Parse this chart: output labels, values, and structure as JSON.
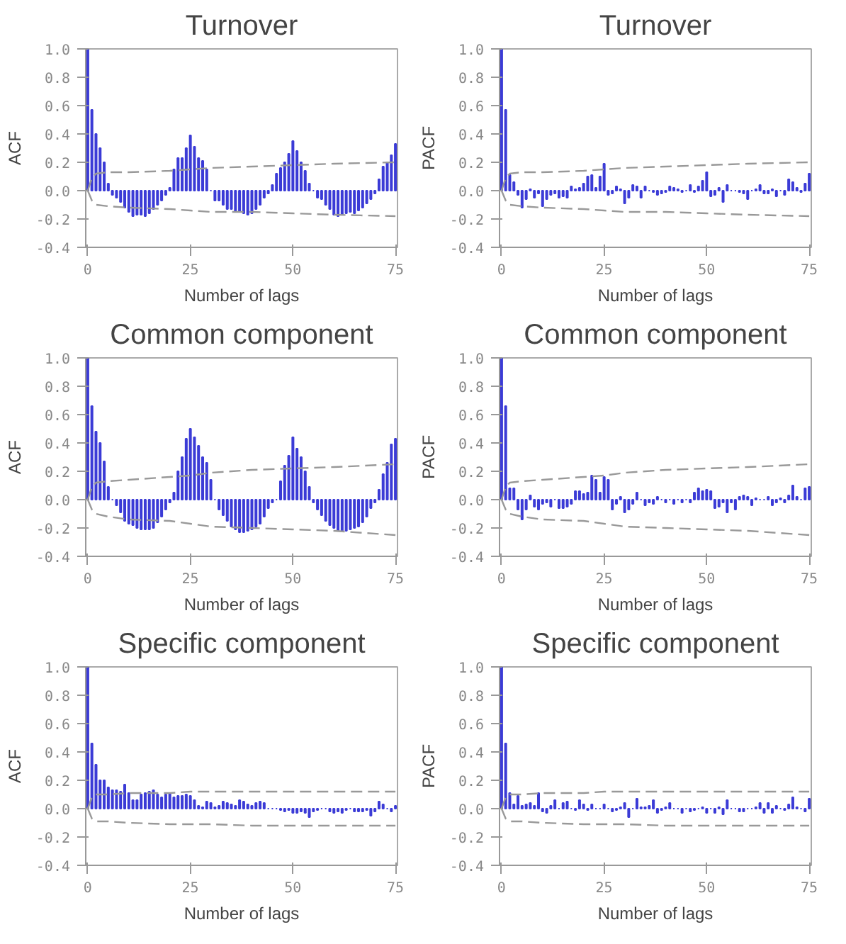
{
  "chart_data": [
    {
      "type": "bar",
      "title": "Turnover",
      "xlabel": "Number of lags",
      "ylabel": "ACF",
      "xlim": [
        -0.5,
        75.5
      ],
      "xticks": [
        0,
        25,
        50,
        75
      ],
      "ylim": [
        -0.4,
        1.0
      ],
      "yticks": [
        {
          "value": -0.4,
          "label": "-0.4"
        },
        {
          "value": -0.2,
          "label": "-0.2"
        },
        {
          "value": 0,
          "label": "0.0"
        },
        0.2,
        0.4,
        0.6,
        0.8,
        {
          "value": 1,
          "label": "1.0"
        }
      ],
      "x": [
        0,
        1,
        2,
        3,
        4,
        5,
        6,
        7,
        8,
        9,
        10,
        11,
        12,
        13,
        14,
        15,
        16,
        17,
        18,
        19,
        20,
        21,
        22,
        23,
        24,
        25,
        26,
        27,
        28,
        29,
        30,
        31,
        32,
        33,
        34,
        35,
        36,
        37,
        38,
        39,
        40,
        41,
        42,
        43,
        44,
        45,
        46,
        47,
        48,
        49,
        50,
        51,
        52,
        53,
        54,
        55,
        56,
        57,
        58,
        59,
        60,
        61,
        62,
        63,
        64,
        65,
        66,
        67,
        68,
        69,
        70,
        71,
        72,
        73,
        74,
        75
      ],
      "series": [
        {
          "type": "bar",
          "color": "#3b3bd6",
          "values": [
            1.0,
            0.57,
            0.4,
            0.3,
            0.2,
            0.05,
            -0.03,
            -0.05,
            -0.08,
            -0.12,
            -0.15,
            -0.18,
            -0.17,
            -0.17,
            -0.18,
            -0.16,
            -0.13,
            -0.1,
            -0.07,
            -0.03,
            0.02,
            0.15,
            0.23,
            0.23,
            0.3,
            0.39,
            0.31,
            0.23,
            0.21,
            0.15,
            0.0,
            -0.07,
            -0.07,
            -0.1,
            -0.13,
            -0.13,
            -0.15,
            -0.15,
            -0.16,
            -0.17,
            -0.16,
            -0.13,
            -0.1,
            -0.05,
            -0.02,
            0.04,
            0.12,
            0.16,
            0.2,
            0.26,
            0.35,
            0.28,
            0.2,
            0.14,
            0.05,
            0.0,
            -0.05,
            -0.06,
            -0.1,
            -0.13,
            -0.17,
            -0.18,
            -0.17,
            -0.16,
            -0.15,
            -0.16,
            -0.14,
            -0.12,
            -0.09,
            -0.06,
            -0.02,
            0.08,
            0.17,
            0.2,
            0.25,
            0.33
          ]
        },
        {
          "type": "line",
          "color": "#999999",
          "line_style": "dashed",
          "x": [
            0,
            1,
            2,
            5,
            10,
            20,
            25,
            30,
            40,
            50,
            60,
            75
          ],
          "values": [
            0,
            0.09,
            0.12,
            0.13,
            0.13,
            0.14,
            0.15,
            0.16,
            0.17,
            0.18,
            0.19,
            0.2
          ]
        },
        {
          "type": "line",
          "color": "#999999",
          "line_style": "dashed",
          "x": [
            0,
            1,
            2,
            5,
            10,
            20,
            25,
            30,
            40,
            50,
            60,
            75
          ],
          "values": [
            0,
            -0.07,
            -0.1,
            -0.11,
            -0.12,
            -0.13,
            -0.14,
            -0.15,
            -0.15,
            -0.16,
            -0.17,
            -0.18
          ]
        }
      ]
    },
    {
      "type": "bar",
      "title": "Turnover",
      "xlabel": "Number of lags",
      "ylabel": "PACF",
      "xlim": [
        -0.5,
        75.5
      ],
      "xticks": [
        0,
        25,
        50,
        75
      ],
      "ylim": [
        -0.4,
        1.0
      ],
      "yticks": [
        {
          "value": -0.4,
          "label": "-0.4"
        },
        {
          "value": -0.2,
          "label": "-0.2"
        },
        {
          "value": 0,
          "label": "0.0"
        },
        0.2,
        0.4,
        0.6,
        0.8,
        {
          "value": 1,
          "label": "1.0"
        }
      ],
      "x": [
        0,
        1,
        2,
        3,
        4,
        5,
        6,
        7,
        8,
        9,
        10,
        11,
        12,
        13,
        14,
        15,
        16,
        17,
        18,
        19,
        20,
        21,
        22,
        23,
        24,
        25,
        26,
        27,
        28,
        29,
        30,
        31,
        32,
        33,
        34,
        35,
        36,
        37,
        38,
        39,
        40,
        41,
        42,
        43,
        44,
        45,
        46,
        47,
        48,
        49,
        50,
        51,
        52,
        53,
        54,
        55,
        56,
        57,
        58,
        59,
        60,
        61,
        62,
        63,
        64,
        65,
        66,
        67,
        68,
        69,
        70,
        71,
        72,
        73,
        74,
        75
      ],
      "series": [
        {
          "type": "bar",
          "color": "#3b3bd6",
          "values": [
            1.0,
            0.57,
            0.11,
            0.06,
            -0.03,
            -0.12,
            -0.06,
            0.01,
            -0.05,
            -0.02,
            -0.11,
            -0.06,
            -0.03,
            -0.02,
            -0.05,
            -0.04,
            -0.05,
            0.03,
            0.01,
            0.02,
            0.05,
            0.1,
            0.11,
            0.02,
            0.1,
            0.19,
            -0.03,
            -0.02,
            0.03,
            0.01,
            -0.09,
            -0.05,
            0.04,
            0.03,
            -0.05,
            0.03,
            0.0,
            -0.01,
            -0.03,
            -0.02,
            -0.01,
            0.03,
            0.02,
            0.01,
            -0.01,
            0.0,
            0.04,
            -0.01,
            0.03,
            0.07,
            0.13,
            -0.04,
            -0.03,
            0.02,
            -0.08,
            0.04,
            0.0,
            0.0,
            -0.01,
            -0.02,
            -0.06,
            0.0,
            0.01,
            0.04,
            -0.02,
            -0.02,
            0.01,
            -0.04,
            0.0,
            -0.03,
            0.08,
            0.06,
            0.02,
            -0.01,
            0.05,
            0.12
          ]
        },
        {
          "type": "line",
          "color": "#999999",
          "line_style": "dashed",
          "x": [
            0,
            1,
            2,
            5,
            10,
            20,
            25,
            30,
            40,
            50,
            60,
            75
          ],
          "values": [
            0,
            0.09,
            0.12,
            0.13,
            0.13,
            0.14,
            0.15,
            0.16,
            0.17,
            0.18,
            0.19,
            0.2
          ]
        },
        {
          "type": "line",
          "color": "#999999",
          "line_style": "dashed",
          "x": [
            0,
            1,
            2,
            5,
            10,
            20,
            25,
            30,
            40,
            50,
            60,
            75
          ],
          "values": [
            0,
            -0.07,
            -0.1,
            -0.11,
            -0.12,
            -0.13,
            -0.14,
            -0.15,
            -0.15,
            -0.16,
            -0.17,
            -0.18
          ]
        }
      ]
    },
    {
      "type": "bar",
      "title": "Common component",
      "xlabel": "Number of lags",
      "ylabel": "ACF",
      "xlim": [
        -0.5,
        75.5
      ],
      "xticks": [
        0,
        25,
        50,
        75
      ],
      "ylim": [
        -0.4,
        1.0
      ],
      "yticks": [
        {
          "value": -0.4,
          "label": "-0.4"
        },
        {
          "value": -0.2,
          "label": "-0.2"
        },
        {
          "value": 0,
          "label": "0.0"
        },
        0.2,
        0.4,
        0.6,
        0.8,
        {
          "value": 1,
          "label": "1.0"
        }
      ],
      "x": [
        0,
        1,
        2,
        3,
        4,
        5,
        6,
        7,
        8,
        9,
        10,
        11,
        12,
        13,
        14,
        15,
        16,
        17,
        18,
        19,
        20,
        21,
        22,
        23,
        24,
        25,
        26,
        27,
        28,
        29,
        30,
        31,
        32,
        33,
        34,
        35,
        36,
        37,
        38,
        39,
        40,
        41,
        42,
        43,
        44,
        45,
        46,
        47,
        48,
        49,
        50,
        51,
        52,
        53,
        54,
        55,
        56,
        57,
        58,
        59,
        60,
        61,
        62,
        63,
        64,
        65,
        66,
        67,
        68,
        69,
        70,
        71,
        72,
        73,
        74,
        75
      ],
      "series": [
        {
          "type": "bar",
          "color": "#3b3bd6",
          "values": [
            1.0,
            0.66,
            0.48,
            0.4,
            0.27,
            0.09,
            0.0,
            -0.04,
            -0.09,
            -0.15,
            -0.17,
            -0.18,
            -0.2,
            -0.21,
            -0.21,
            -0.21,
            -0.2,
            -0.16,
            -0.12,
            -0.07,
            -0.02,
            0.05,
            0.2,
            0.3,
            0.43,
            0.5,
            0.44,
            0.38,
            0.3,
            0.26,
            0.14,
            0.0,
            -0.07,
            -0.11,
            -0.15,
            -0.19,
            -0.21,
            -0.23,
            -0.23,
            -0.22,
            -0.21,
            -0.19,
            -0.17,
            -0.12,
            -0.06,
            -0.02,
            0.0,
            0.13,
            0.24,
            0.31,
            0.44,
            0.36,
            0.3,
            0.2,
            0.09,
            -0.02,
            -0.07,
            -0.11,
            -0.15,
            -0.18,
            -0.2,
            -0.22,
            -0.22,
            -0.22,
            -0.21,
            -0.2,
            -0.19,
            -0.16,
            -0.12,
            -0.06,
            -0.02,
            0.07,
            0.18,
            0.26,
            0.39,
            0.43
          ]
        },
        {
          "type": "line",
          "color": "#999999",
          "line_style": "dashed",
          "x": [
            0,
            1,
            2,
            5,
            10,
            20,
            25,
            30,
            40,
            50,
            60,
            75
          ],
          "values": [
            0,
            0.09,
            0.12,
            0.13,
            0.14,
            0.16,
            0.17,
            0.19,
            0.21,
            0.22,
            0.23,
            0.25
          ]
        },
        {
          "type": "line",
          "color": "#999999",
          "line_style": "dashed",
          "x": [
            0,
            1,
            2,
            5,
            10,
            20,
            25,
            30,
            40,
            50,
            60,
            75
          ],
          "values": [
            0,
            -0.07,
            -0.1,
            -0.12,
            -0.14,
            -0.15,
            -0.17,
            -0.19,
            -0.2,
            -0.21,
            -0.22,
            -0.25
          ]
        }
      ]
    },
    {
      "type": "bar",
      "title": "Common component",
      "xlabel": "Number of lags",
      "ylabel": "PACF",
      "xlim": [
        -0.5,
        75.5
      ],
      "xticks": [
        0,
        25,
        50,
        75
      ],
      "ylim": [
        -0.4,
        1.0
      ],
      "yticks": [
        {
          "value": -0.4,
          "label": "-0.4"
        },
        {
          "value": -0.2,
          "label": "-0.2"
        },
        {
          "value": 0,
          "label": "0.0"
        },
        0.2,
        0.4,
        0.6,
        0.8,
        {
          "value": 1,
          "label": "1.0"
        }
      ],
      "x": [
        0,
        1,
        2,
        3,
        4,
        5,
        6,
        7,
        8,
        9,
        10,
        11,
        12,
        13,
        14,
        15,
        16,
        17,
        18,
        19,
        20,
        21,
        22,
        23,
        24,
        25,
        26,
        27,
        28,
        29,
        30,
        31,
        32,
        33,
        34,
        35,
        36,
        37,
        38,
        39,
        40,
        41,
        42,
        43,
        44,
        45,
        46,
        47,
        48,
        49,
        50,
        51,
        52,
        53,
        54,
        55,
        56,
        57,
        58,
        59,
        60,
        61,
        62,
        63,
        64,
        65,
        66,
        67,
        68,
        69,
        70,
        71,
        72,
        73,
        74,
        75
      ],
      "series": [
        {
          "type": "bar",
          "color": "#3b3bd6",
          "values": [
            1.0,
            0.66,
            0.08,
            0.08,
            -0.07,
            -0.14,
            -0.07,
            0.03,
            -0.05,
            -0.07,
            -0.03,
            -0.02,
            -0.05,
            0.0,
            -0.06,
            -0.06,
            -0.05,
            -0.03,
            0.06,
            0.06,
            0.04,
            0.05,
            0.17,
            0.14,
            0.05,
            0.16,
            0.14,
            -0.07,
            -0.03,
            0.02,
            -0.09,
            -0.07,
            -0.03,
            0.05,
            0.0,
            -0.04,
            -0.02,
            -0.03,
            0.02,
            0.0,
            -0.02,
            0.0,
            -0.03,
            0.0,
            -0.02,
            0.0,
            -0.02,
            0.05,
            0.08,
            0.06,
            0.07,
            0.06,
            -0.06,
            -0.05,
            -0.02,
            -0.09,
            -0.02,
            -0.07,
            0.02,
            0.03,
            0.02,
            -0.04,
            0.01,
            0.0,
            0.0,
            0.02,
            -0.04,
            -0.02,
            0.01,
            -0.02,
            0.03,
            0.1,
            0.02,
            0.0,
            0.08,
            0.09
          ]
        },
        {
          "type": "line",
          "color": "#999999",
          "line_style": "dashed",
          "x": [
            0,
            1,
            2,
            5,
            10,
            20,
            25,
            30,
            40,
            50,
            60,
            75
          ],
          "values": [
            0,
            0.09,
            0.12,
            0.13,
            0.14,
            0.16,
            0.17,
            0.19,
            0.21,
            0.22,
            0.23,
            0.25
          ]
        },
        {
          "type": "line",
          "color": "#999999",
          "line_style": "dashed",
          "x": [
            0,
            1,
            2,
            5,
            10,
            20,
            25,
            30,
            40,
            50,
            60,
            75
          ],
          "values": [
            0,
            -0.07,
            -0.1,
            -0.12,
            -0.14,
            -0.15,
            -0.17,
            -0.19,
            -0.2,
            -0.21,
            -0.22,
            -0.25
          ]
        }
      ]
    },
    {
      "type": "bar",
      "title": "Specific component",
      "xlabel": "Number of lags",
      "ylabel": "ACF",
      "xlim": [
        -0.5,
        75.5
      ],
      "xticks": [
        0,
        25,
        50,
        75
      ],
      "ylim": [
        -0.4,
        1.0
      ],
      "yticks": [
        {
          "value": -0.4,
          "label": "-0.4"
        },
        {
          "value": -0.2,
          "label": "-0.2"
        },
        {
          "value": 0,
          "label": "0.0"
        },
        0.2,
        0.4,
        0.6,
        0.8,
        {
          "value": 1,
          "label": "1.0"
        }
      ],
      "x": [
        0,
        1,
        2,
        3,
        4,
        5,
        6,
        7,
        8,
        9,
        10,
        11,
        12,
        13,
        14,
        15,
        16,
        17,
        18,
        19,
        20,
        21,
        22,
        23,
        24,
        25,
        26,
        27,
        28,
        29,
        30,
        31,
        32,
        33,
        34,
        35,
        36,
        37,
        38,
        39,
        40,
        41,
        42,
        43,
        44,
        45,
        46,
        47,
        48,
        49,
        50,
        51,
        52,
        53,
        54,
        55,
        56,
        57,
        58,
        59,
        60,
        61,
        62,
        63,
        64,
        65,
        66,
        67,
        68,
        69,
        70,
        71,
        72,
        73,
        74,
        75
      ],
      "series": [
        {
          "type": "bar",
          "color": "#3b3bd6",
          "values": [
            1.0,
            0.46,
            0.31,
            0.2,
            0.2,
            0.15,
            0.13,
            0.13,
            0.12,
            0.17,
            0.11,
            0.06,
            0.06,
            0.1,
            0.11,
            0.12,
            0.13,
            0.1,
            0.08,
            0.1,
            0.11,
            0.08,
            0.09,
            0.09,
            0.1,
            0.09,
            0.06,
            0.02,
            0.01,
            0.05,
            0.04,
            0.01,
            0.02,
            0.05,
            0.04,
            0.03,
            0.02,
            0.06,
            0.05,
            0.03,
            0.02,
            0.04,
            0.05,
            0.04,
            0.0,
            0.0,
            0.0,
            -0.01,
            -0.02,
            -0.01,
            -0.03,
            -0.03,
            -0.02,
            -0.03,
            -0.06,
            -0.02,
            -0.01,
            0.0,
            0.0,
            -0.02,
            -0.03,
            -0.02,
            -0.03,
            -0.01,
            0.0,
            -0.02,
            -0.02,
            -0.02,
            -0.01,
            -0.05,
            -0.02,
            0.05,
            0.03,
            0.0,
            -0.02,
            0.02
          ]
        },
        {
          "type": "line",
          "color": "#999999",
          "line_style": "dashed",
          "x": [
            0,
            1,
            2,
            5,
            10,
            20,
            25,
            30,
            40,
            50,
            60,
            75
          ],
          "values": [
            0,
            0.08,
            0.1,
            0.1,
            0.11,
            0.11,
            0.12,
            0.12,
            0.12,
            0.12,
            0.12,
            0.12
          ]
        },
        {
          "type": "line",
          "color": "#999999",
          "line_style": "dashed",
          "x": [
            0,
            1,
            2,
            5,
            10,
            20,
            25,
            30,
            40,
            50,
            60,
            75
          ],
          "values": [
            0,
            -0.07,
            -0.09,
            -0.09,
            -0.1,
            -0.11,
            -0.11,
            -0.11,
            -0.12,
            -0.12,
            -0.12,
            -0.12
          ]
        }
      ]
    },
    {
      "type": "bar",
      "title": "Specific component",
      "xlabel": "Number of lags",
      "ylabel": "PACF",
      "xlim": [
        -0.5,
        75.5
      ],
      "xticks": [
        0,
        25,
        50,
        75
      ],
      "ylim": [
        -0.4,
        1.0
      ],
      "yticks": [
        {
          "value": -0.4,
          "label": "-0.4"
        },
        {
          "value": -0.2,
          "label": "-0.2"
        },
        {
          "value": 0,
          "label": "0.0"
        },
        0.2,
        0.4,
        0.6,
        0.8,
        {
          "value": 1,
          "label": "1.0"
        }
      ],
      "x": [
        0,
        1,
        2,
        3,
        4,
        5,
        6,
        7,
        8,
        9,
        10,
        11,
        12,
        13,
        14,
        15,
        16,
        17,
        18,
        19,
        20,
        21,
        22,
        23,
        24,
        25,
        26,
        27,
        28,
        29,
        30,
        31,
        32,
        33,
        34,
        35,
        36,
        37,
        38,
        39,
        40,
        41,
        42,
        43,
        44,
        45,
        46,
        47,
        48,
        49,
        50,
        51,
        52,
        53,
        54,
        55,
        56,
        57,
        58,
        59,
        60,
        61,
        62,
        63,
        64,
        65,
        66,
        67,
        68,
        69,
        70,
        71,
        72,
        73,
        74,
        75
      ],
      "series": [
        {
          "type": "bar",
          "color": "#3b3bd6",
          "values": [
            1.0,
            0.46,
            0.11,
            0.03,
            0.09,
            0.02,
            0.03,
            0.04,
            0.02,
            0.11,
            -0.02,
            -0.03,
            0.02,
            0.06,
            0.0,
            0.04,
            0.05,
            0.0,
            -0.01,
            0.06,
            0.03,
            -0.01,
            0.03,
            0.0,
            0.0,
            0.03,
            0.0,
            -0.02,
            -0.01,
            0.01,
            0.04,
            -0.06,
            0.0,
            0.07,
            0.01,
            0.01,
            0.02,
            0.06,
            -0.03,
            -0.01,
            0.01,
            0.04,
            0.0,
            0.0,
            -0.03,
            0.0,
            -0.02,
            -0.01,
            0.0,
            0.01,
            -0.03,
            0.0,
            -0.03,
            0.01,
            -0.04,
            0.06,
            0.0,
            0.0,
            -0.02,
            -0.02,
            0.0,
            0.0,
            0.01,
            0.04,
            -0.03,
            0.04,
            -0.03,
            0.02,
            0.0,
            -0.01,
            0.03,
            0.08,
            0.01,
            0.0,
            -0.02,
            0.07
          ]
        },
        {
          "type": "line",
          "color": "#999999",
          "line_style": "dashed",
          "x": [
            0,
            1,
            2,
            5,
            10,
            20,
            25,
            30,
            40,
            50,
            60,
            75
          ],
          "values": [
            0,
            0.08,
            0.1,
            0.1,
            0.11,
            0.11,
            0.12,
            0.12,
            0.12,
            0.12,
            0.12,
            0.12
          ]
        },
        {
          "type": "line",
          "color": "#999999",
          "line_style": "dashed",
          "x": [
            0,
            1,
            2,
            5,
            10,
            20,
            25,
            30,
            40,
            50,
            60,
            75
          ],
          "values": [
            0,
            -0.07,
            -0.09,
            -0.09,
            -0.1,
            -0.11,
            -0.11,
            -0.11,
            -0.12,
            -0.12,
            -0.12,
            -0.12
          ]
        }
      ]
    }
  ]
}
